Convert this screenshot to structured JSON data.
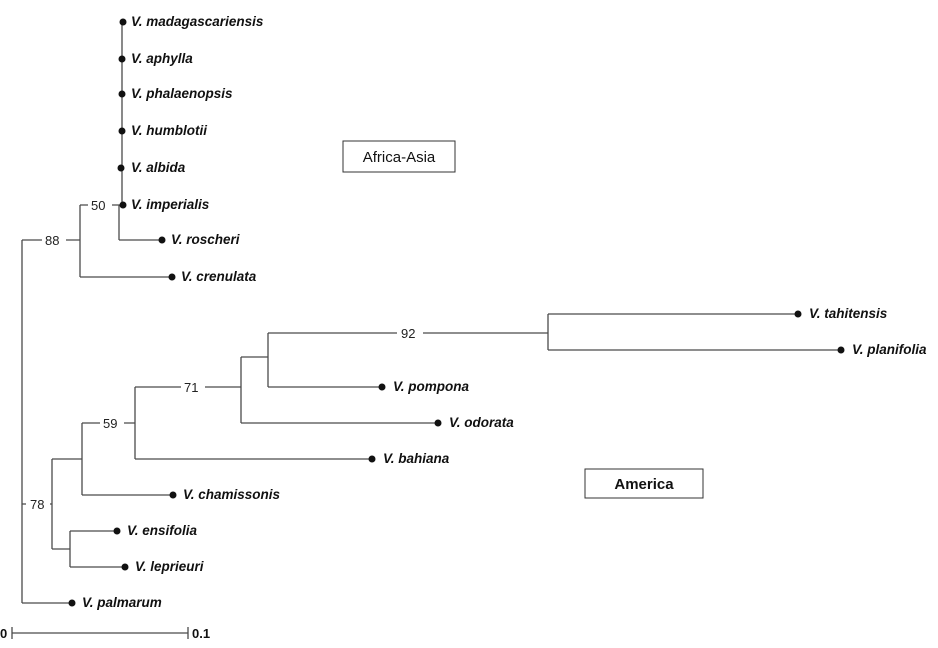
{
  "taxa": {
    "madagascariensis": "V. madagascariensis",
    "aphylla": "V. aphylla",
    "phalaenopsis": "V. phalaenopsis",
    "humblotii": "V. humblotii",
    "albida": "V. albida",
    "imperialis": "V. imperialis",
    "roscheri": "V. roscheri",
    "crenulata": "V. crenulata",
    "tahitensis": "V. tahitensis",
    "planifolia": "V. planifolia",
    "pompona": "V. pompona",
    "odorata": "V. odorata",
    "bahiana": "V. bahiana",
    "chamissonis": "V. chamissonis",
    "ensifolia": "V. ensifolia",
    "leprieurii": "V. leprieuri",
    "palmarum": "V. palmarum"
  },
  "support": {
    "africa_asia_root": "88",
    "africa_asia_core": "50",
    "tahitensis_planifolia": "92",
    "pompona_group": "71",
    "bahiana_group": "59",
    "america_root": "78"
  },
  "regions": {
    "africa_asia": "Africa-Asia",
    "america": "America"
  },
  "scale": {
    "start": "0",
    "end": "0.1"
  }
}
